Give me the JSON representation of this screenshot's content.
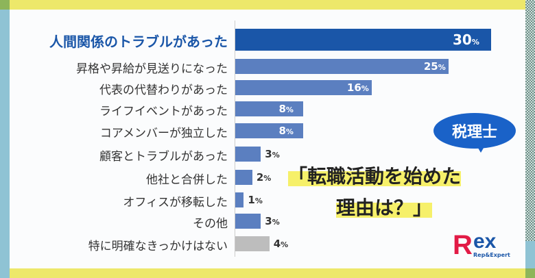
{
  "chart_data": {
    "type": "bar",
    "orientation": "horizontal",
    "unit": "%",
    "categories": [
      "人間関係のトラブルがあった",
      "昇格や昇給が見送りになった",
      "代表の代替わりがあった",
      "ライフイベントがあった",
      "コアメンバーが独立した",
      "顧客とトラブルがあった",
      "他社と合併した",
      "オフィスが移転した",
      "その他",
      "特に明確なきっかけはない"
    ],
    "values": [
      30,
      25,
      16,
      8,
      8,
      3,
      2,
      1,
      3,
      4
    ],
    "title": "「転職活動を始めた理由は？」",
    "xlim": [
      0,
      30
    ],
    "grid": false,
    "colors": {
      "highlight": "#1a56a8",
      "normal": "#5b7fc0",
      "none": "#bdbdbd"
    }
  },
  "badge": "税理士",
  "title_lines": [
    "「転職活動を始めた",
    "理由は？」"
  ],
  "logo": {
    "main_r": "R",
    "main_ex": "ex",
    "sub": "Rep&Expert"
  }
}
